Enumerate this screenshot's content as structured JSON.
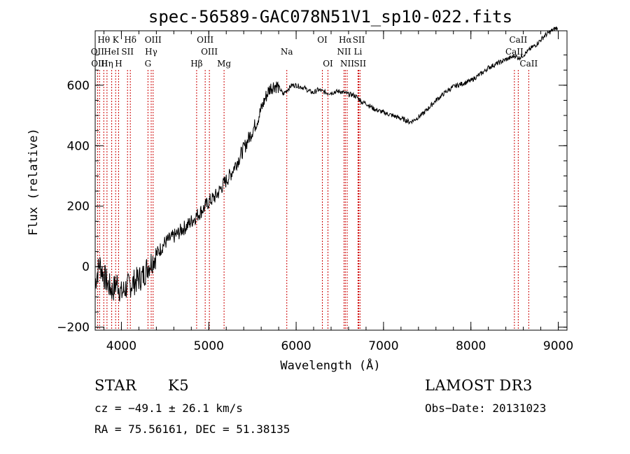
{
  "chart_data": {
    "type": "line",
    "title": "spec-56589-GAC078N51V1_sp10-022.fits",
    "xlabel": "Wavelength (Å)",
    "ylabel": "Flux (relative)",
    "xlim": [
      3700,
      9100
    ],
    "ylim": [
      -210,
      780
    ],
    "x_ticks": [
      4000,
      5000,
      6000,
      7000,
      8000,
      9000
    ],
    "y_ticks": [
      -200,
      0,
      200,
      400,
      600
    ],
    "x_tick_labels": [
      "4000",
      "5000",
      "6000",
      "7000",
      "8000",
      "9000"
    ],
    "y_tick_labels": [
      "−200",
      "0",
      "200",
      "400",
      "600"
    ],
    "grid": false,
    "series": [
      {
        "name": "flux",
        "x": [
          3700,
          3750,
          3800,
          3850,
          3900,
          3950,
          4000,
          4050,
          4100,
          4150,
          4200,
          4250,
          4300,
          4350,
          4400,
          4450,
          4500,
          4550,
          4600,
          4650,
          4700,
          4750,
          4800,
          4850,
          4900,
          4950,
          5000,
          5050,
          5100,
          5150,
          5200,
          5250,
          5300,
          5350,
          5400,
          5450,
          5500,
          5550,
          5600,
          5650,
          5700,
          5750,
          5800,
          5850,
          5900,
          5950,
          6000,
          6050,
          6100,
          6150,
          6200,
          6250,
          6300,
          6350,
          6400,
          6450,
          6500,
          6550,
          6600,
          6650,
          6700,
          6750,
          6800,
          6850,
          6900,
          6950,
          7000,
          7050,
          7100,
          7150,
          7200,
          7250,
          7300,
          7350,
          7400,
          7450,
          7500,
          7550,
          7600,
          7650,
          7700,
          7750,
          7800,
          7850,
          7900,
          7950,
          8000,
          8050,
          8100,
          8150,
          8200,
          8250,
          8300,
          8350,
          8400,
          8450,
          8500,
          8550,
          8600,
          8650,
          8700,
          8750,
          8800,
          8850,
          8900,
          8950,
          8990
        ],
        "y": [
          -50,
          10,
          -30,
          -60,
          -80,
          -50,
          -90,
          -70,
          -60,
          -50,
          -40,
          -30,
          0,
          20,
          40,
          60,
          80,
          90,
          100,
          110,
          125,
          135,
          150,
          165,
          180,
          195,
          215,
          225,
          240,
          265,
          285,
          305,
          335,
          360,
          390,
          420,
          450,
          480,
          520,
          560,
          590,
          600,
          595,
          570,
          585,
          600,
          600,
          595,
          590,
          580,
          575,
          585,
          580,
          575,
          575,
          578,
          580,
          575,
          570,
          568,
          560,
          545,
          540,
          530,
          520,
          515,
          510,
          505,
          500,
          495,
          490,
          485,
          478,
          485,
          495,
          505,
          520,
          535,
          550,
          562,
          575,
          585,
          595,
          600,
          605,
          610,
          615,
          625,
          635,
          645,
          658,
          665,
          672,
          678,
          685,
          690,
          698,
          690,
          700,
          712,
          725,
          735,
          750,
          765,
          775,
          785,
          790
        ]
      }
    ],
    "emission_lines": [
      {
        "label": "Hθ",
        "x": 3798,
        "row": 1
      },
      {
        "label": "OII",
        "x": 3727,
        "row": 2
      },
      {
        "label": "OIII",
        "x": 3750,
        "row": 3
      },
      {
        "label": "K",
        "x": 3934,
        "row": 1
      },
      {
        "label": "HeI",
        "x": 3889,
        "row": 2
      },
      {
        "label": "Hη",
        "x": 3835,
        "row": 3
      },
      {
        "label": "SII",
        "x": 4070,
        "row": 2
      },
      {
        "label": "H",
        "x": 3968,
        "row": 3
      },
      {
        "label": "Hδ",
        "x": 4102,
        "row": 1
      },
      {
        "label": "OIII",
        "x": 4363,
        "row": 1
      },
      {
        "label": "Hγ",
        "x": 4341,
        "row": 2
      },
      {
        "label": "G",
        "x": 4304,
        "row": 3
      },
      {
        "label": "OIII",
        "x": 4959,
        "row": 1
      },
      {
        "label": "OIII",
        "x": 5007,
        "row": 2
      },
      {
        "label": "Hβ",
        "x": 4861,
        "row": 3
      },
      {
        "label": "Mg",
        "x": 5175,
        "row": 3
      },
      {
        "label": "Na",
        "x": 5893,
        "row": 2
      },
      {
        "label": "OI",
        "x": 6300,
        "row": 1
      },
      {
        "label": "OI",
        "x": 6364,
        "row": 3
      },
      {
        "label": "Hα",
        "x": 6563,
        "row": 1
      },
      {
        "label": "NII",
        "x": 6548,
        "row": 2
      },
      {
        "label": "NII",
        "x": 6584,
        "row": 3
      },
      {
        "label": "SII",
        "x": 6717,
        "row": 1
      },
      {
        "label": "Li",
        "x": 6708,
        "row": 2
      },
      {
        "label": "SII",
        "x": 6731,
        "row": 3
      },
      {
        "label": "CaII",
        "x": 8542,
        "row": 1
      },
      {
        "label": "CaII",
        "x": 8498,
        "row": 2
      },
      {
        "label": "CaII",
        "x": 8662,
        "row": 3
      }
    ]
  },
  "info": {
    "object_class": "STAR",
    "subclass": "K5",
    "cz": "cz = −49.1 ± 26.1 km/s",
    "coords": "RA =  75.56161, DEC =  51.38135",
    "survey": "LAMOST DR3",
    "obs_date": "Obs−Date: 20131023"
  }
}
